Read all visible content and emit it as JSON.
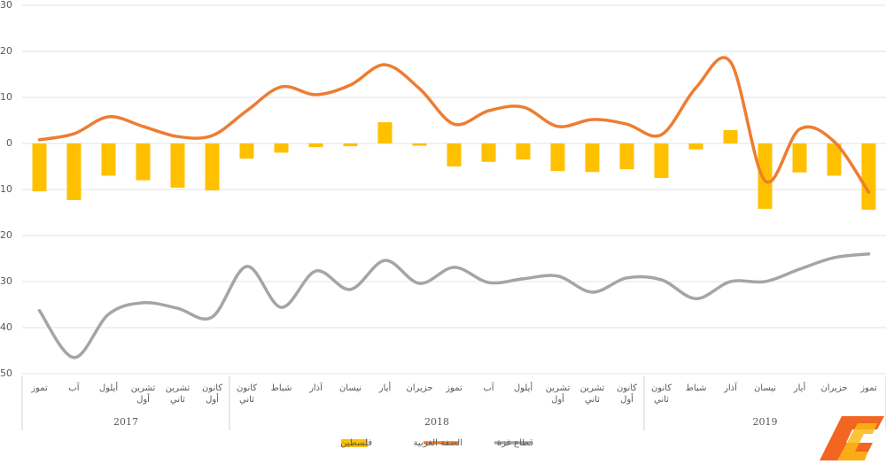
{
  "chart_data": {
    "type": "bar_line",
    "categories": [
      "تموز",
      "آب",
      "أيلول",
      "تشرين أول",
      "تشرين ثاني",
      "كانون أول",
      "كانون ثاني",
      "شباط",
      "آذار",
      "نيسان",
      "أيار",
      "حزيران",
      "تموز",
      "آب",
      "أيلول",
      "تشرين أول",
      "تشرين ثاني",
      "كانون أول",
      "كانون ثاني",
      "شباط",
      "آذار",
      "نيسان",
      "أيار",
      "حزيران",
      "تموز"
    ],
    "groups": [
      {
        "label": "2017",
        "span": 6
      },
      {
        "label": "2018",
        "span": 12
      },
      {
        "label": "2019",
        "span": 7
      }
    ],
    "series": [
      {
        "name": "فلسطين",
        "type": "bar",
        "color": "#ffc000",
        "values": [
          -10.4,
          -12.3,
          -7,
          -8,
          -9.6,
          -10.2,
          -3.3,
          -2,
          -0.8,
          -0.6,
          4.6,
          -0.5,
          -5,
          -4,
          -3.5,
          -6,
          -6.2,
          -5.6,
          -7.5,
          -1.3,
          2.9,
          -14.2,
          -6.3,
          -7,
          -14.4
        ]
      },
      {
        "name": "الضفة الغربية",
        "type": "line",
        "color": "#ed7d31",
        "values": [
          0.8,
          2.1,
          5.8,
          3.7,
          1.5,
          1.7,
          7.1,
          12.3,
          10.6,
          12.7,
          17.1,
          11.9,
          4.2,
          7.1,
          7.9,
          3.7,
          5.2,
          4.2,
          1.9,
          12.1,
          17.7,
          -8.1,
          3.1,
          0.4,
          -10.6
        ]
      },
      {
        "name": "قطاع غزة",
        "type": "line",
        "color": "#a5a5a5",
        "values": [
          -36.3,
          -46.5,
          -37.1,
          -34.6,
          -35.8,
          -37.7,
          -26.7,
          -35.6,
          -27.7,
          -31.7,
          -25.4,
          -30.4,
          -26.9,
          -30.2,
          -29.4,
          -28.8,
          -32.3,
          -29.2,
          -29.6,
          -33.7,
          -30,
          -30,
          -27.3,
          -24.8,
          -24
        ]
      }
    ],
    "ylim": [
      -50,
      30
    ],
    "yticks": [
      -50,
      -40,
      -30,
      -20,
      -10,
      0,
      10,
      20,
      30
    ],
    "ytick_labels": [
      "50",
      "40",
      "30",
      "20",
      "10",
      "0",
      "10",
      "20",
      "30"
    ],
    "grid": true,
    "legend": "bottom"
  }
}
